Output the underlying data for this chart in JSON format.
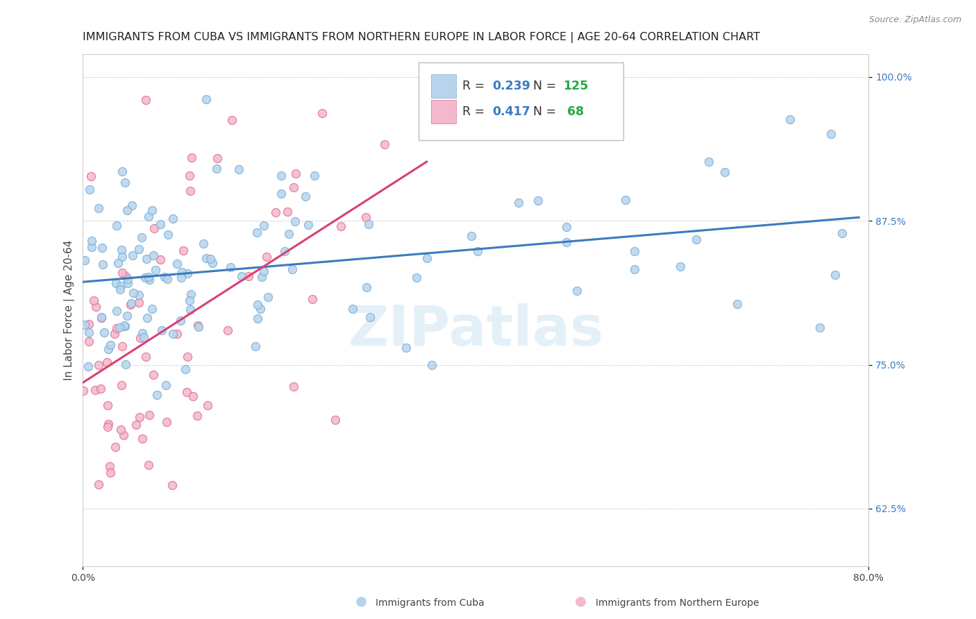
{
  "title": "IMMIGRANTS FROM CUBA VS IMMIGRANTS FROM NORTHERN EUROPE IN LABOR FORCE | AGE 20-64 CORRELATION CHART",
  "source": "Source: ZipAtlas.com",
  "ylabel": "In Labor Force | Age 20-64",
  "xlim": [
    0.0,
    0.8
  ],
  "ylim": [
    0.575,
    1.02
  ],
  "xticks": [
    0.0,
    0.8
  ],
  "xticklabels": [
    "0.0%",
    "80.0%"
  ],
  "yticks": [
    0.625,
    0.75,
    0.875,
    1.0
  ],
  "yticklabels": [
    "62.5%",
    "75.0%",
    "87.5%",
    "100.0%"
  ],
  "cuba_color": "#b8d4ed",
  "cuba_edge_color": "#7aaed6",
  "north_europe_color": "#f4b8cc",
  "north_europe_edge_color": "#e07090",
  "cuba_line_color": "#3a7bbf",
  "north_europe_line_color": "#d94070",
  "watermark": "ZIPatlas",
  "title_fontsize": 11.5,
  "axis_label_fontsize": 11,
  "tick_fontsize": 10,
  "n_value_color": "#22aa44",
  "r_value_color": "#3a7bbf"
}
